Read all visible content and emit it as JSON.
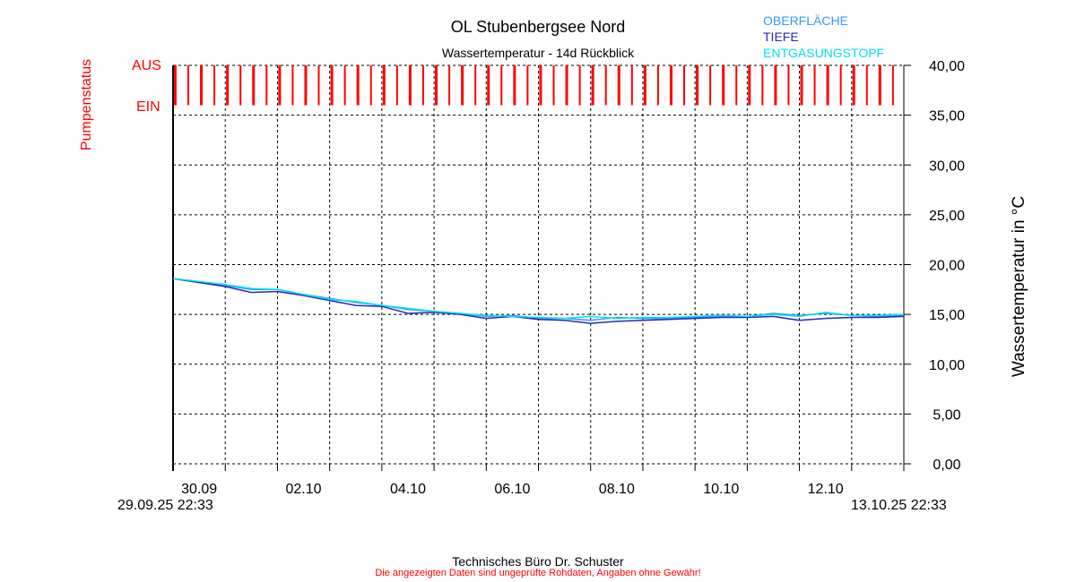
{
  "chart_data": {
    "type": "line",
    "title": "OL Stubenbergsee Nord",
    "subtitle": "Wassertemperatur - 14d Rückblick",
    "ylabel": "Wassertemperatur in °C",
    "ylabel_left": "Pumpenstatus",
    "pump_labels": {
      "off": "AUS",
      "on": "EIN"
    },
    "ylim": [
      0,
      40
    ],
    "yticks": [
      "0,00",
      "5,00",
      "10,00",
      "15,00",
      "20,00",
      "25,00",
      "30,00",
      "35,00",
      "40,00"
    ],
    "x_range_days": [
      0,
      14
    ],
    "x_start_label": "29.09.25 22:33",
    "x_end_label": "13.10.25 22:33",
    "xtick_labels": [
      "30.09",
      "02.10",
      "04.10",
      "06.10",
      "08.10",
      "10.10",
      "12.10"
    ],
    "grid": true,
    "legend_position": "top-right",
    "pump_cycle": {
      "first_h": 1,
      "interval_h": 6,
      "count": 56
    },
    "x_days": [
      0,
      0.5,
      1,
      1.5,
      2,
      2.5,
      3,
      3.5,
      4,
      4.5,
      5,
      5.5,
      6,
      6.5,
      7,
      7.5,
      8,
      8.5,
      9,
      9.5,
      10,
      10.5,
      11,
      11.5,
      12,
      12.5,
      13,
      13.5,
      14
    ],
    "series": [
      {
        "name": "OBERFLÄCHE",
        "color": "#3399ff",
        "values": [
          18.6,
          18.2,
          17.9,
          17.5,
          17.5,
          17.0,
          16.6,
          16.2,
          15.9,
          15.5,
          15.3,
          15.1,
          14.8,
          14.9,
          14.6,
          14.6,
          14.4,
          14.7,
          14.6,
          14.6,
          14.7,
          14.8,
          14.8,
          15.1,
          14.9,
          15.1,
          14.9,
          14.8,
          14.9
        ]
      },
      {
        "name": "TIEFE",
        "color": "#2828b4",
        "values": [
          18.6,
          18.2,
          17.8,
          17.2,
          17.3,
          16.9,
          16.4,
          15.9,
          15.8,
          15.1,
          15.2,
          15.0,
          14.6,
          14.8,
          14.5,
          14.4,
          14.1,
          14.3,
          14.4,
          14.5,
          14.6,
          14.7,
          14.7,
          14.8,
          14.4,
          14.6,
          14.7,
          14.7,
          14.8
        ]
      },
      {
        "name": "ENTGASUNGSTOPF",
        "color": "#00e0f0",
        "values": [
          18.6,
          18.3,
          18.0,
          17.6,
          17.5,
          17.0,
          16.5,
          16.3,
          15.9,
          15.6,
          15.3,
          15.1,
          14.9,
          14.8,
          14.7,
          14.6,
          14.8,
          14.6,
          14.7,
          14.7,
          14.8,
          14.9,
          14.8,
          15.0,
          14.8,
          15.2,
          14.9,
          14.9,
          15.0
        ]
      }
    ]
  },
  "footer": {
    "company": "Technisches Büro Dr. Schuster",
    "disclaimer": "Die angezeigten Daten sind ungeprüfte Rohdaten, Angaben ohne Gewähr!"
  }
}
